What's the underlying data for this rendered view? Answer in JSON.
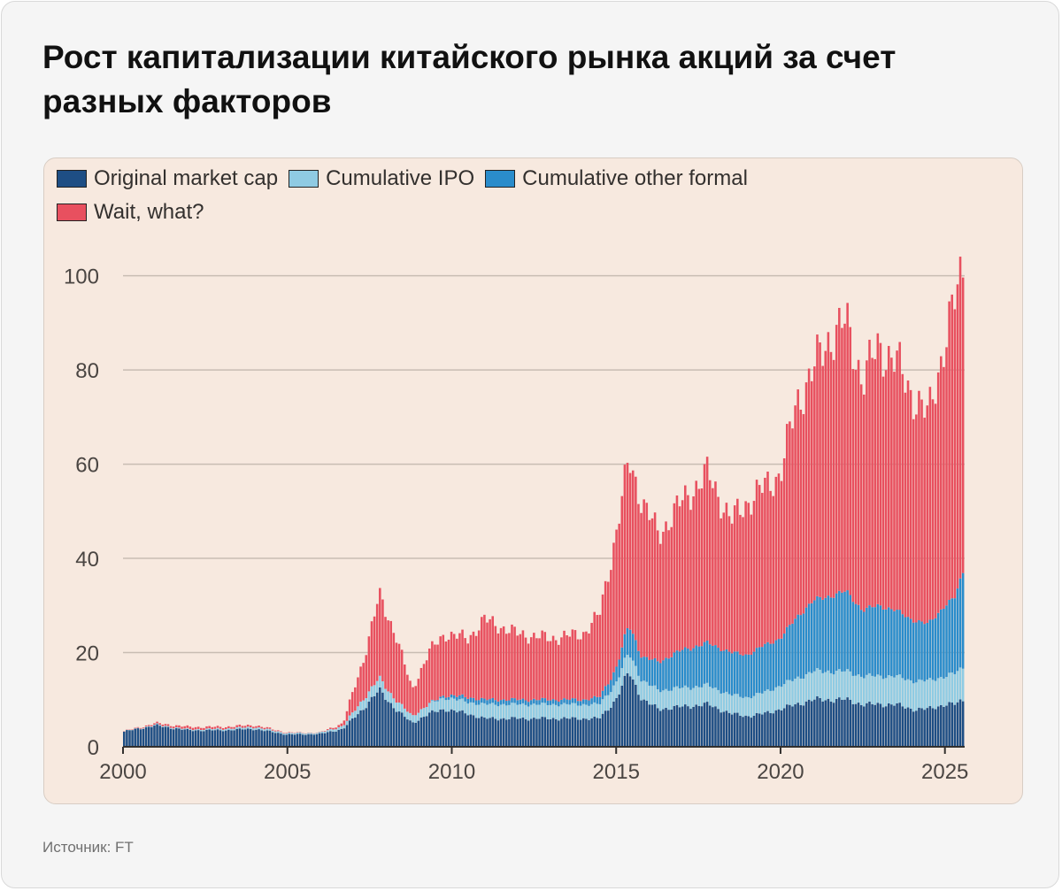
{
  "title": "Рост капитализации китайского рынка акций за счет разных факторов",
  "source": "Источник: FT",
  "colors": {
    "original": "#1e4e84",
    "ipo": "#8fcbe3",
    "other": "#2a8ccb",
    "wait": "#e8505f",
    "panel_bg": "#f7e9df",
    "grid": "#c8bdb3"
  },
  "chart_data": {
    "type": "bar",
    "stacked": true,
    "xlim": [
      2000,
      2025.6
    ],
    "ylim": [
      0,
      105
    ],
    "x_ticks": [
      2000,
      2005,
      2010,
      2015,
      2020,
      2025
    ],
    "y_ticks": [
      0,
      20,
      40,
      60,
      80,
      100
    ],
    "grid": "horizontal",
    "legend_position": "top-left",
    "series": [
      {
        "name": "Original market cap",
        "color_key": "original"
      },
      {
        "name": "Cumulative IPO",
        "color_key": "ipo"
      },
      {
        "name": "Cumulative other formal",
        "color_key": "other"
      },
      {
        "name": "Wait, what?",
        "color_key": "wait"
      }
    ],
    "x": [
      2000,
      2001,
      2002,
      2003,
      2004,
      2005,
      2006,
      2006.7,
      2007.3,
      2007.8,
      2008.3,
      2008.8,
      2009.3,
      2009.8,
      2010.5,
      2011,
      2012,
      2013,
      2014,
      2014.5,
      2015,
      2015.4,
      2015.8,
      2016.3,
      2017,
      2017.8,
      2018.5,
      2019,
      2019.5,
      2020,
      2020.5,
      2021,
      2021.5,
      2022,
      2022.5,
      2023,
      2023.5,
      2024,
      2024.5,
      2025,
      2025.3,
      2025.6
    ],
    "totals": [
      3.2,
      5,
      4.2,
      4.2,
      4.6,
      3,
      3,
      5,
      18,
      32,
      24,
      12,
      20,
      24,
      23,
      27,
      24,
      23,
      24,
      28,
      45,
      61,
      52,
      45,
      52,
      58,
      48,
      52,
      55,
      58,
      73,
      80,
      87,
      90,
      78,
      85,
      82,
      75,
      70,
      86,
      94,
      103
    ],
    "original": [
      3.2,
      4.5,
      3.5,
      3.5,
      3.8,
      2.6,
      2.7,
      3.8,
      8,
      12,
      8,
      5,
      7,
      8,
      7,
      6,
      6,
      6,
      6,
      6,
      10,
      16,
      10,
      8,
      8.5,
      9,
      7,
      6.5,
      7,
      8,
      9,
      10,
      10,
      10,
      9,
      9,
      9,
      8,
      8,
      9,
      9,
      10
    ],
    "ipo": [
      0,
      0.2,
      0.2,
      0.3,
      0.4,
      0.3,
      0.3,
      0.6,
      2,
      2.5,
      2,
      1.5,
      2,
      2.5,
      2.5,
      3,
      3,
      3,
      3,
      3,
      3.5,
      4,
      4,
      4,
      4,
      4,
      4,
      4,
      4.5,
      5,
      5.5,
      6,
      6,
      6,
      6,
      6,
      6,
      6,
      6,
      6,
      6.5,
      7
    ],
    "other": [
      0,
      0,
      0,
      0,
      0,
      0,
      0,
      0,
      0,
      0,
      0,
      0,
      0,
      0.5,
      1,
      1,
      1,
      1,
      1,
      1.5,
      3,
      6,
      5,
      6,
      8,
      9,
      9,
      9,
      10,
      10,
      13,
      15,
      16,
      17,
      14,
      15,
      14,
      13,
      12,
      15,
      16,
      21
    ]
  }
}
